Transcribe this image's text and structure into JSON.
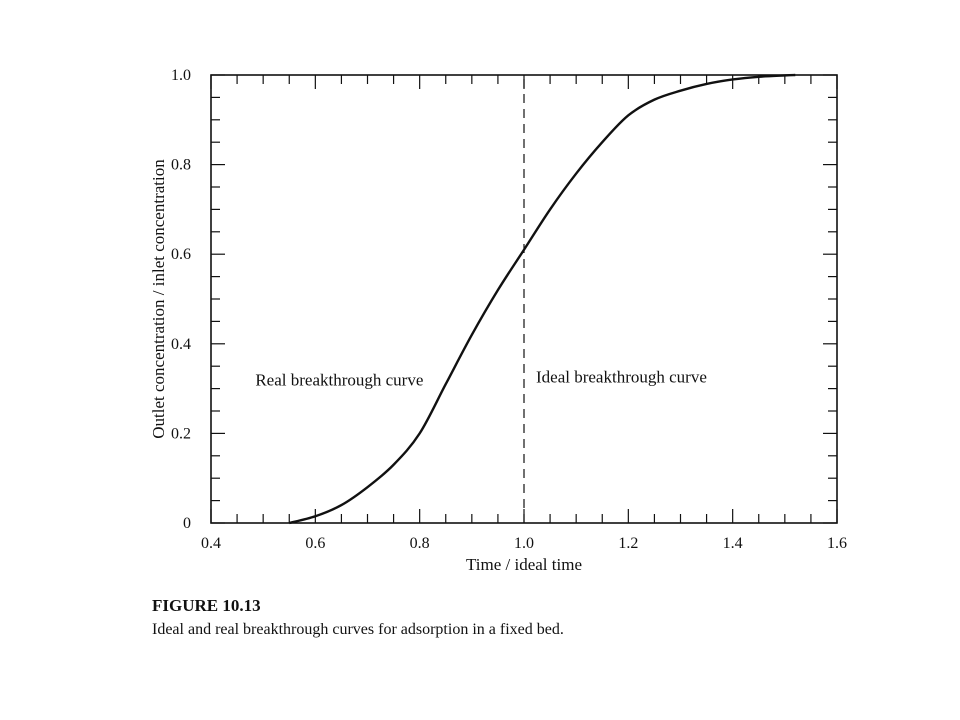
{
  "chart_data": {
    "type": "line",
    "xlabel": "Time / ideal time",
    "ylabel": "Outlet concentration / inlet concentration",
    "xlim": [
      0.4,
      1.6
    ],
    "ylim": [
      0,
      1.0
    ],
    "x_ticks": [
      "0.4",
      "0.6",
      "0.8",
      "1.0",
      "1.2",
      "1.4",
      "1.6"
    ],
    "y_ticks": [
      "0",
      "0.2",
      "0.4",
      "0.6",
      "0.8",
      "1.0"
    ],
    "grid": false,
    "series": [
      {
        "name": "Real breakthrough curve",
        "style": "solid",
        "x": [
          0.55,
          0.6,
          0.65,
          0.7,
          0.75,
          0.8,
          0.85,
          0.9,
          0.95,
          1.0,
          1.05,
          1.1,
          1.15,
          1.2,
          1.25,
          1.3,
          1.35,
          1.4,
          1.45,
          1.5,
          1.52
        ],
        "y": [
          0.0,
          0.015,
          0.04,
          0.08,
          0.13,
          0.2,
          0.31,
          0.42,
          0.52,
          0.61,
          0.7,
          0.78,
          0.85,
          0.91,
          0.945,
          0.965,
          0.98,
          0.99,
          0.996,
          0.999,
          1.0
        ]
      },
      {
        "name": "Ideal breakthrough curve",
        "style": "dashed",
        "x": [
          1.0,
          1.0
        ],
        "y": [
          0.0,
          1.0
        ]
      }
    ],
    "annotations": [
      {
        "text": "Real breakthrough curve",
        "x": 0.6,
        "y": 0.31
      },
      {
        "text": "Ideal breakthrough curve",
        "x": 1.0,
        "y": 0.31
      }
    ]
  },
  "caption": {
    "label": "FIGURE 10.13",
    "text": "Ideal and real breakthrough curves for adsorption in a fixed bed."
  }
}
